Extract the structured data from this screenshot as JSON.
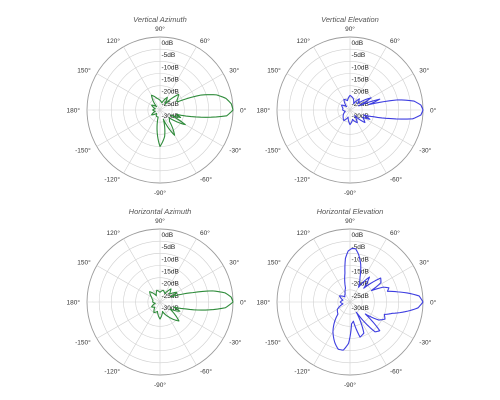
{
  "chart_data": [
    {
      "type": "polar",
      "title": "Vertical Azimuth",
      "color": "#2e8b3a",
      "radial_labels": [
        "0dB",
        "-5dB",
        "-10dB",
        "-15dB",
        "-20dB",
        "-25dB",
        "-30dB"
      ],
      "angle_labels": [
        "0°",
        "30°",
        "60°",
        "90°",
        "120°",
        "150°",
        "180°",
        "-150°",
        "-120°",
        "-90°",
        "-60°",
        "-30°"
      ],
      "radial_range_db": [
        -30,
        0
      ],
      "grid": true,
      "pattern": {
        "angles_deg": [
          0,
          5,
          10,
          15,
          20,
          25,
          30,
          40,
          50,
          60,
          75,
          90,
          105,
          120,
          135,
          150,
          165,
          180,
          -165,
          -150,
          -135,
          -120,
          -105,
          -90,
          -80,
          -70,
          -60,
          -50,
          -40,
          -30,
          -25,
          -20,
          -15,
          -10,
          -5
        ],
        "gain_db": [
          0,
          -0.6,
          -2.5,
          -6,
          -12,
          -22,
          -22,
          -20,
          -27,
          -24,
          -27,
          -26,
          -25,
          -23,
          -28,
          -26,
          -28,
          -27,
          -28,
          -26,
          -28,
          -27,
          -27,
          -15,
          -19,
          -26,
          -18,
          -24,
          -25,
          -18,
          -25,
          -21,
          -23,
          -13,
          -2.5
        ]
      }
    },
    {
      "type": "polar",
      "title": "Vertical Elevation",
      "color": "#3d3de0",
      "radial_labels": [
        "0dB",
        "-5dB",
        "-10dB",
        "-15dB",
        "-20dB",
        "-25dB",
        "-30dB"
      ],
      "angle_labels": [
        "0°",
        "30°",
        "60°",
        "90°",
        "120°",
        "150°",
        "180°",
        "-150°",
        "-120°",
        "-90°",
        "-60°",
        "-30°"
      ],
      "radial_range_db": [
        -30,
        0
      ],
      "grid": true,
      "pattern": {
        "angles_deg": [
          0,
          4,
          8,
          12,
          16,
          20,
          25,
          30,
          40,
          50,
          60,
          75,
          90,
          105,
          120,
          135,
          150,
          165,
          180,
          -165,
          -150,
          -135,
          -120,
          -105,
          -90,
          -75,
          -60,
          -50,
          -40,
          -30,
          -25,
          -20,
          -16,
          -12,
          -8,
          -4
        ],
        "gain_db": [
          0,
          -0.8,
          -3.5,
          -10,
          -22,
          -17,
          -26,
          -20,
          -26,
          -24,
          -27,
          -25,
          -24,
          -26,
          -25,
          -28,
          -26,
          -27,
          -27,
          -28,
          -27,
          -26,
          -25,
          -27,
          -24,
          -26,
          -24,
          -27,
          -22,
          -24,
          -21,
          -24,
          -20,
          -13,
          -4,
          -0.8
        ]
      }
    },
    {
      "type": "polar",
      "title": "Horizontal Azimuth",
      "color": "#2e8b3a",
      "radial_labels": [
        "0dB",
        "-5dB",
        "-10dB",
        "-15dB",
        "-20dB",
        "-25dB",
        "-30dB"
      ],
      "angle_labels": [
        "0°",
        "30°",
        "60°",
        "90°",
        "120°",
        "150°",
        "180°",
        "-150°",
        "-120°",
        "-90°",
        "-60°",
        "-30°"
      ],
      "radial_range_db": [
        -30,
        0
      ],
      "grid": true,
      "pattern": {
        "angles_deg": [
          0,
          4,
          8,
          12,
          16,
          20,
          25,
          30,
          40,
          50,
          60,
          75,
          90,
          105,
          120,
          135,
          150,
          165,
          180,
          -165,
          -150,
          -135,
          -120,
          -105,
          -90,
          -75,
          -60,
          -45,
          -35,
          -25,
          -20,
          -15,
          -10,
          -5
        ],
        "gain_db": [
          0,
          -0.7,
          -3,
          -8,
          -16,
          -21,
          -25,
          -22,
          -25,
          -23,
          -26,
          -25,
          -26,
          -25,
          -27,
          -24,
          -26,
          -27,
          -27,
          -28,
          -26,
          -27,
          -25,
          -26,
          -23,
          -26,
          -23,
          -19,
          -25,
          -21,
          -24,
          -19,
          -11,
          -3
        ]
      }
    },
    {
      "type": "polar",
      "title": "Horizontal Elevation",
      "color": "#3d3de0",
      "radial_labels": [
        "0dB",
        "-5dB",
        "-10dB",
        "-15dB",
        "-20dB",
        "-25dB",
        "-30dB"
      ],
      "angle_labels": [
        "0°",
        "30°",
        "60°",
        "90°",
        "120°",
        "150°",
        "180°",
        "-150°",
        "-120°",
        "-90°",
        "-60°",
        "-30°"
      ],
      "radial_range_db": [
        -30,
        0
      ],
      "grid": true,
      "pattern": {
        "angles_deg": [
          0,
          5,
          8,
          12,
          16,
          20,
          24,
          28,
          32,
          38,
          45,
          52,
          60,
          68,
          74,
          80,
          84,
          88,
          92,
          96,
          100,
          108,
          120,
          135,
          150,
          165,
          180,
          -165,
          -150,
          -135,
          -120,
          -110,
          -104,
          -98,
          -92,
          -86,
          -80,
          -74,
          -66,
          -58,
          -50,
          -44,
          -38,
          -32,
          -26,
          -20,
          -15,
          -10,
          -5
        ],
        "gain_db": [
          0,
          -1.5,
          -5,
          -10,
          -14,
          -13,
          -15,
          -20,
          -15,
          -14,
          -22,
          -17,
          -23,
          -19,
          -14,
          -10,
          -8,
          -8,
          -9,
          -12,
          -18,
          -24,
          -26,
          -27,
          -25,
          -27,
          -26,
          -27,
          -24,
          -23,
          -16,
          -12,
          -10,
          -10,
          -13,
          -21,
          -22,
          -15,
          -16,
          -25,
          -14,
          -13,
          -22,
          -16,
          -14,
          -15,
          -12,
          -7,
          -2
        ]
      }
    }
  ]
}
